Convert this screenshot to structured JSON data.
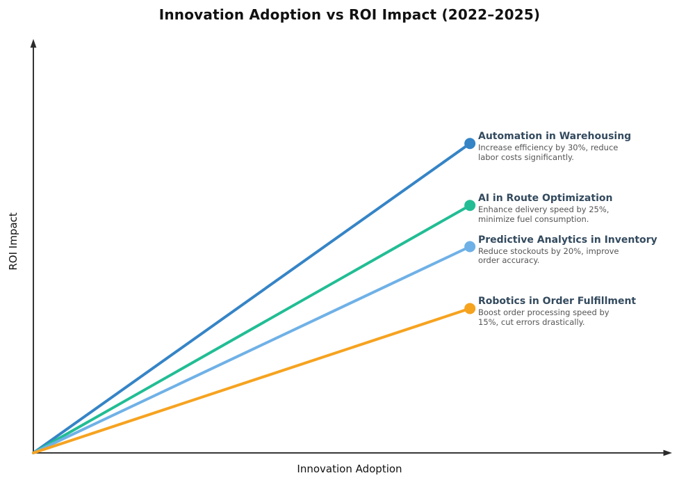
{
  "figure": {
    "title": "Innovation Adoption vs ROI Impact (2022–2025)",
    "xlabel": "Innovation Adoption",
    "ylabel": "ROI Impact"
  },
  "chart_data": {
    "type": "line",
    "title": "Innovation Adoption vs ROI Impact (2022–2025)",
    "xlabel": "Innovation Adoption",
    "ylabel": "ROI Impact",
    "x_range": [
      0,
      1
    ],
    "y_range": [
      0,
      1
    ],
    "grid": false,
    "legend_position": "inline-annotations-right",
    "axis_style": "arrowed axes, no tick labels",
    "axis_color": "#1c1c1c",
    "annotation_title_color": "#334a5e",
    "annotation_text_color": "#555555",
    "series": [
      {
        "name": "Automation in Warehousing",
        "annotation_lines": [
          "Increase efficiency by 30%, reduce",
          "labor costs significantly."
        ],
        "color": "#3584c6",
        "x": [
          0,
          0.685
        ],
        "y": [
          0,
          0.75
        ]
      },
      {
        "name": "AI in Route Optimization",
        "annotation_lines": [
          "Enhance delivery speed by 25%,",
          "minimize fuel consumption."
        ],
        "color": "#22bd94",
        "x": [
          0,
          0.685
        ],
        "y": [
          0,
          0.6
        ]
      },
      {
        "name": "Predictive Analytics in Inventory",
        "annotation_lines": [
          "Reduce stockouts by 20%, improve",
          "order accuracy."
        ],
        "color": "#6fb1e7",
        "x": [
          0,
          0.685
        ],
        "y": [
          0,
          0.5
        ]
      },
      {
        "name": "Robotics in Order Fulfillment",
        "annotation_lines": [
          "Boost order processing speed by",
          "15%, cut errors drastically."
        ],
        "color": "#f6a320",
        "x": [
          0,
          0.685
        ],
        "y": [
          0,
          0.35
        ]
      }
    ]
  }
}
